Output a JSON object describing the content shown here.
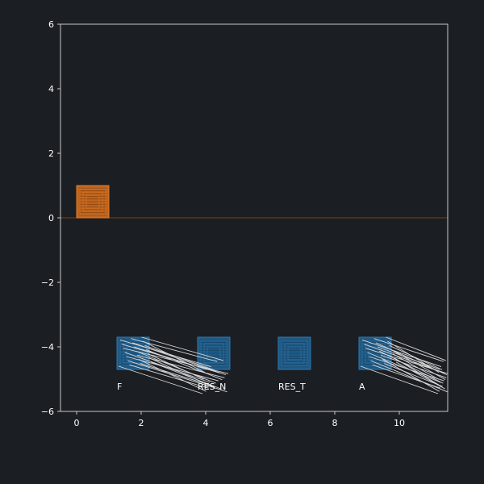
{
  "chart_data": {
    "type": "scatter",
    "xlim": [
      -0.5,
      11.5
    ],
    "ylim": [
      -6,
      6
    ],
    "xticks": [
      0,
      2,
      4,
      6,
      8,
      10
    ],
    "yticks": [
      -6,
      -4,
      -2,
      0,
      2,
      4,
      6
    ],
    "xtick_labels": [
      "0",
      "2",
      "4",
      "6",
      "8",
      "10"
    ],
    "ytick_labels": [
      "−6",
      "−4",
      "−2",
      "0",
      "2",
      "4",
      "6"
    ],
    "grid": false,
    "reference_line": {
      "y": 0,
      "color": "#6b3a12"
    },
    "colors": {
      "background": "#1b1e22",
      "axes": "#c8c8c8",
      "orange_fill": "#c0651c",
      "orange_stroke": "#e07a28",
      "orange_inner": "#8a4412",
      "blue_fill": "#1f5a86",
      "blue_stroke": "#2f78ad",
      "blue_inner": "#164466",
      "white_lines": "#d9d9d9"
    },
    "boxes": [
      {
        "name": "orange-box",
        "x": [
          0,
          1
        ],
        "y": [
          0,
          1
        ],
        "color": "orange",
        "label": ""
      },
      {
        "name": "box-F",
        "x": [
          1.25,
          2.25
        ],
        "y": [
          -4.7,
          -3.7
        ],
        "color": "blue",
        "label": "F"
      },
      {
        "name": "box-RES_N",
        "x": [
          3.75,
          4.75
        ],
        "y": [
          -4.7,
          -3.7
        ],
        "color": "blue",
        "label": "RES_N"
      },
      {
        "name": "box-RES_T",
        "x": [
          6.25,
          7.25
        ],
        "y": [
          -4.7,
          -3.7
        ],
        "color": "blue",
        "label": "RES_T"
      },
      {
        "name": "box-A",
        "x": [
          8.75,
          9.75
        ],
        "y": [
          -4.7,
          -3.7
        ],
        "color": "blue",
        "label": "A"
      }
    ],
    "line_bundles": [
      {
        "name": "bundle-F",
        "x_start": [
          1.3,
          2.3
        ],
        "x_end": [
          3.9,
          4.7
        ],
        "y_start": [
          -4.6,
          -3.7
        ],
        "drop": 0.85
      },
      {
        "name": "bundle-A",
        "x_start": [
          8.8,
          9.9
        ],
        "x_end": [
          11.2,
          11.5
        ],
        "y_start": [
          -4.6,
          -3.7
        ],
        "drop": 0.85
      }
    ]
  }
}
